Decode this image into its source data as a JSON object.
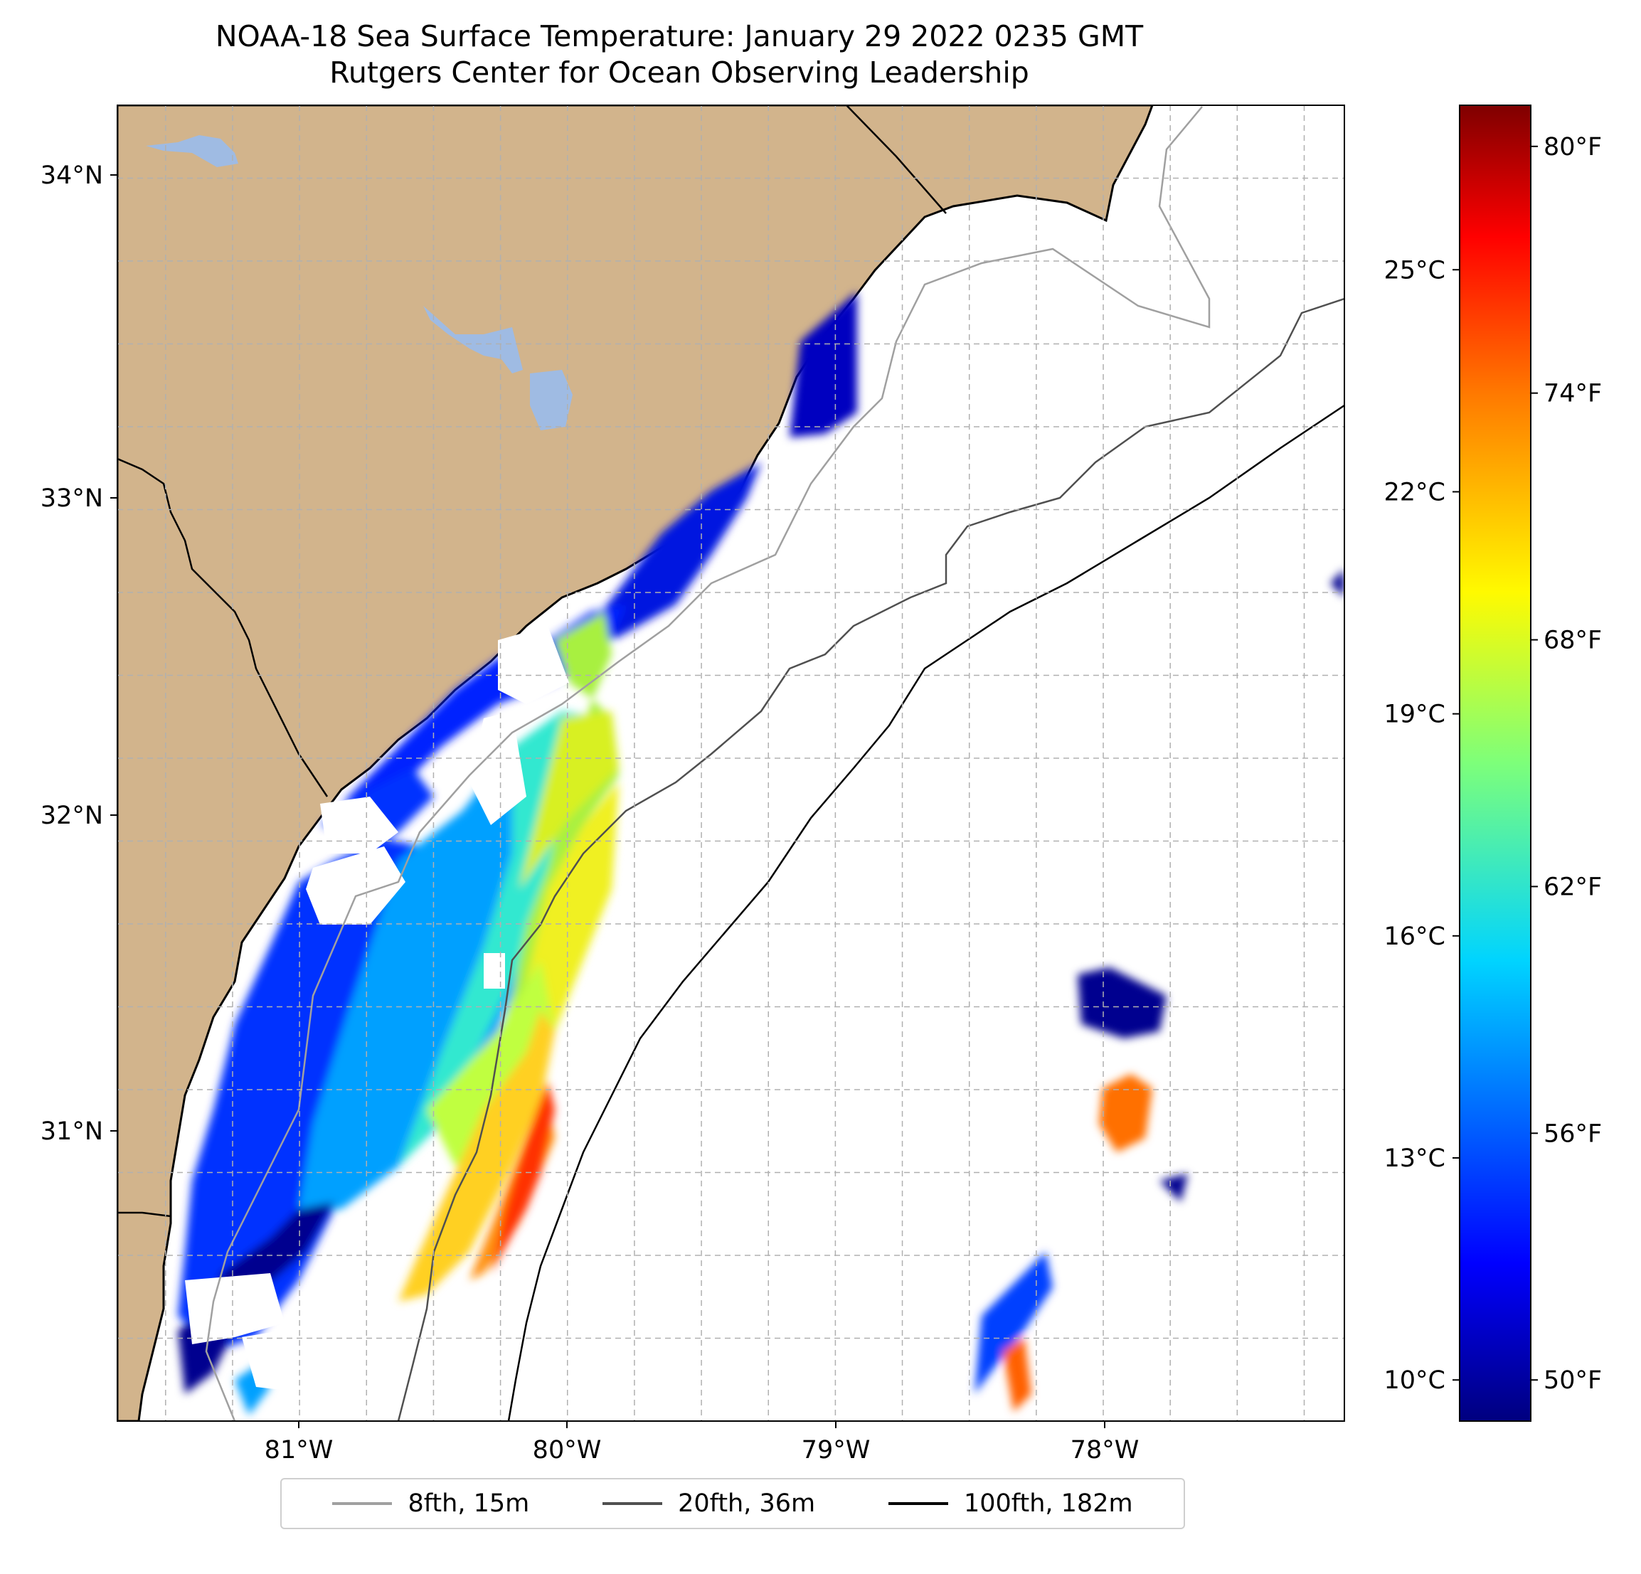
{
  "title": "NOAA-18 Sea Surface Temperature: January 29 2022 0235 GMT",
  "subtitle": "Rutgers Center for Ocean Observing Leadership",
  "map": {
    "lat_labels": [
      "34°N",
      "33°N",
      "32°N",
      "31°N"
    ],
    "lon_labels": [
      "81°W",
      "80°W",
      "79°W",
      "78°W"
    ],
    "lat_values": [
      34,
      33,
      32,
      31
    ],
    "lon_values": [
      -81,
      -80,
      -79,
      -78
    ],
    "extent": {
      "lon_min": -81.68,
      "lon_max": -77.1,
      "lat_min": 30.25,
      "lat_max": 34.22
    },
    "colors": {
      "land": "#d2b48c",
      "lake": "#9fbbe3",
      "ocean_no_data": "#ffffff",
      "isobath_8fth": "#a0a0a0",
      "isobath_20fth": "#505050",
      "isobath_100fth": "#000000"
    }
  },
  "colorbar": {
    "celsius_labels": [
      "25°C",
      "22°C",
      "19°C",
      "16°C",
      "13°C",
      "10°C"
    ],
    "celsius_values": [
      25,
      22,
      19,
      16,
      13,
      10
    ],
    "fahrenheit_labels": [
      "80°F",
      "74°F",
      "68°F",
      "62°F",
      "56°F",
      "50°F"
    ],
    "fahrenheit_values": [
      80,
      74,
      68,
      62,
      56,
      50
    ],
    "range_f": [
      49,
      81
    ],
    "colormap": "jet"
  },
  "legend": {
    "items": [
      {
        "label": "8fth, 15m",
        "color": "#a0a0a0"
      },
      {
        "label": "20fth, 36m",
        "color": "#505050"
      },
      {
        "label": "100fth, 182m",
        "color": "#000000"
      }
    ]
  }
}
